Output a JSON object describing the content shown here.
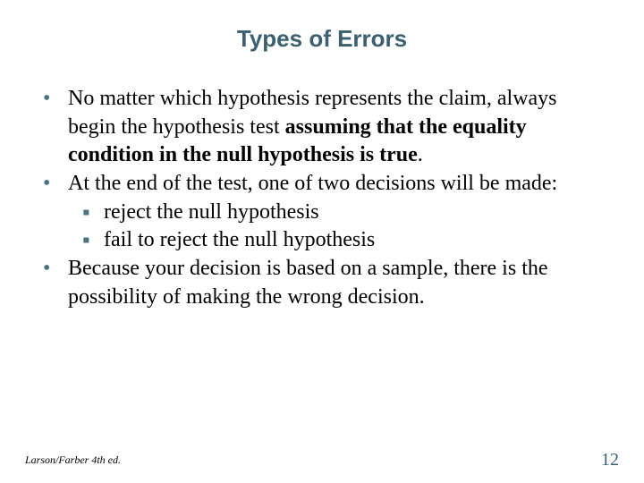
{
  "title": {
    "text": "Types of Errors",
    "color": "#3b6071",
    "fontsize": 26
  },
  "body_fontsize": 24,
  "bullet_color": "#4a7384",
  "bullets": [
    {
      "parts": [
        {
          "t": "No matter which hypothesis represents the claim, always begin the hypothesis test ",
          "b": false
        },
        {
          "t": "assuming that the equality condition in the null hypothesis is true",
          "b": true
        },
        {
          "t": ".",
          "b": false
        }
      ]
    },
    {
      "parts": [
        {
          "t": "At the end of the test, one of two decisions will be made:",
          "b": false
        }
      ],
      "sub": [
        "reject the null hypothesis",
        "fail to reject the null hypothesis"
      ]
    },
    {
      "parts": [
        {
          "t": "Because your decision is based on a sample, there is the possibility of making the wrong decision.",
          "b": false
        }
      ]
    }
  ],
  "footer": {
    "text": "Larson/Farber 4th ed.",
    "fontsize": 12
  },
  "page": {
    "num": "12",
    "color": "#3b6071",
    "fontsize": 20
  }
}
